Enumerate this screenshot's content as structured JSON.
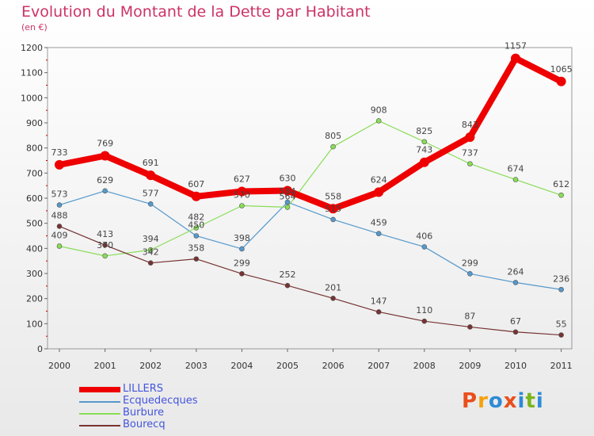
{
  "header": {
    "title": "Evolution du Montant de la Dette par Habitant",
    "subtitle": "(en €)"
  },
  "logo": {
    "text": "Proxiti",
    "letters": [
      "P",
      "r",
      "o",
      "x",
      "i",
      "t",
      "i"
    ],
    "colors": [
      "#e94e1b",
      "#f5a20a",
      "#2e8bd6",
      "#e94e1b",
      "#2e8bd6",
      "#7ab51d",
      "#2e8bd6"
    ]
  },
  "colors": {
    "plot_border": "#999999",
    "grid": "#cccccc"
  },
  "chart_data": {
    "type": "line",
    "title": "Evolution du Montant de la Dette par Habitant",
    "subtitle": "(en €)",
    "x": [
      "2000",
      "2001",
      "2002",
      "2003",
      "2004",
      "2005",
      "2006",
      "2007",
      "2008",
      "2009",
      "2010",
      "2011"
    ],
    "ylim": [
      0,
      1200
    ],
    "yticks": [
      0,
      100,
      200,
      300,
      400,
      500,
      600,
      700,
      800,
      900,
      1000,
      1100,
      1200
    ],
    "grid": false,
    "legend_position": "bottom-left",
    "series": [
      {
        "name": "LILLERS",
        "color": "#ee0000",
        "values": [
          733,
          769,
          691,
          607,
          627,
          630,
          558,
          624,
          743,
          843,
          1157,
          1065
        ]
      },
      {
        "name": "Ecquedecques",
        "color": "#5599cc",
        "values": [
          573,
          629,
          577,
          450,
          398,
          584,
          515,
          459,
          406,
          299,
          264,
          236
        ]
      },
      {
        "name": "Burbure",
        "color": "#88dd55",
        "values": [
          409,
          370,
          394,
          482,
          570,
          564,
          805,
          908,
          825,
          737,
          674,
          612
        ]
      },
      {
        "name": "Bourecq",
        "color": "#773333",
        "values": [
          488,
          413,
          342,
          358,
          299,
          252,
          201,
          147,
          110,
          87,
          67,
          55
        ]
      }
    ]
  }
}
